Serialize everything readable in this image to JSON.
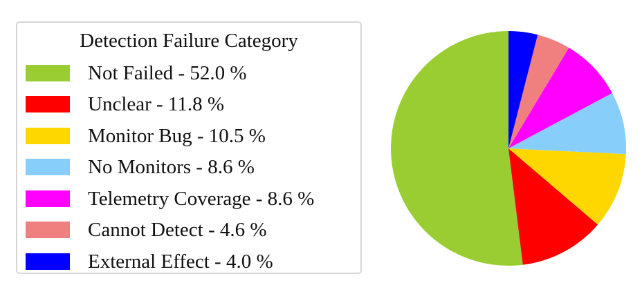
{
  "chart_data": {
    "type": "pie",
    "title": "",
    "legend": {
      "title": "Detection Failure Category",
      "placement": "left"
    },
    "slices": [
      {
        "label": "Not Failed",
        "value": 52.0,
        "color": "#9acd32",
        "legend_text": "Not Failed - 52.0 %"
      },
      {
        "label": "Unclear",
        "value": 11.8,
        "color": "#ff0000",
        "legend_text": "Unclear - 11.8 %"
      },
      {
        "label": "Monitor Bug",
        "value": 10.5,
        "color": "#ffd700",
        "legend_text": "Monitor Bug - 10.5 %"
      },
      {
        "label": "No Monitors",
        "value": 8.6,
        "color": "#87cefa",
        "legend_text": "No Monitors - 8.6 %"
      },
      {
        "label": "Telemetry Coverage",
        "value": 8.6,
        "color": "#ff00ff",
        "legend_text": "Telemetry Coverage - 8.6 %"
      },
      {
        "label": "Cannot Detect",
        "value": 4.6,
        "color": "#f08080",
        "legend_text": "Cannot Detect - 4.6 %"
      },
      {
        "label": "External Effect",
        "value": 4.0,
        "color": "#0000ff",
        "legend_text": "External Effect - 4.0 %"
      }
    ]
  }
}
